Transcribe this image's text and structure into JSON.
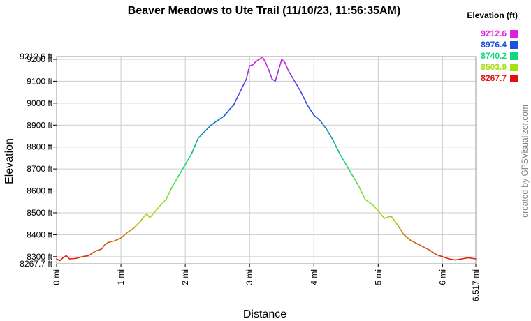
{
  "chart_data": {
    "type": "line",
    "title": "Beaver Meadows to Ute Trail (11/10/23, 11:56:35AM)",
    "xlabel": "Distance",
    "ylabel": "Elevation",
    "x_range": [
      0,
      6.517
    ],
    "y_range": [
      8267.7,
      9212.6
    ],
    "x_ticks": [
      {
        "value": 0,
        "label": "0 mi"
      },
      {
        "value": 1,
        "label": "1 mi"
      },
      {
        "value": 2,
        "label": "2 mi"
      },
      {
        "value": 3,
        "label": "3 mi"
      },
      {
        "value": 4,
        "label": "4 mi"
      },
      {
        "value": 5,
        "label": "5 mi"
      },
      {
        "value": 6,
        "label": "6 mi"
      },
      {
        "value": 6.517,
        "label": "6.517 mi"
      }
    ],
    "y_ticks": [
      {
        "value": 8300,
        "label": "8300 ft"
      },
      {
        "value": 8400,
        "label": "8400 ft"
      },
      {
        "value": 8500,
        "label": "8500 ft"
      },
      {
        "value": 8600,
        "label": "8600 ft"
      },
      {
        "value": 8700,
        "label": "8700 ft"
      },
      {
        "value": 8800,
        "label": "8800 ft"
      },
      {
        "value": 8900,
        "label": "8900 ft"
      },
      {
        "value": 9000,
        "label": "9000 ft"
      },
      {
        "value": 9100,
        "label": "9100 ft"
      },
      {
        "value": 9200,
        "label": "9200 ft"
      }
    ],
    "y_extreme_labels": [
      {
        "value": 9212.6,
        "label": "9212.6 ft"
      },
      {
        "value": 8267.7,
        "label": "8267.7 ft"
      }
    ],
    "grid": true,
    "legend_position": "top-right",
    "legend": {
      "title": "Elevation (ft)",
      "items": [
        {
          "label": "9212.6",
          "color": "#e020e0"
        },
        {
          "label": "8976.4",
          "color": "#1f4fe0"
        },
        {
          "label": "8740.2",
          "color": "#10d880"
        },
        {
          "label": "8503.9",
          "color": "#a8e010"
        },
        {
          "label": "8267.7",
          "color": "#e01010"
        }
      ]
    },
    "series": [
      {
        "x": [
          0,
          0.05,
          0.1,
          0.15,
          0.2,
          0.3,
          0.4,
          0.5,
          0.6,
          0.7,
          0.75,
          0.8,
          0.9,
          1.0,
          1.1,
          1.2,
          1.3,
          1.35,
          1.4,
          1.45,
          1.5,
          1.6,
          1.7,
          1.8,
          1.9,
          2.0,
          2.1,
          2.2,
          2.3,
          2.4,
          2.5,
          2.6,
          2.7,
          2.75,
          2.8,
          2.9,
          2.95,
          3.0,
          3.05,
          3.1,
          3.2,
          3.25,
          3.3,
          3.35,
          3.4,
          3.45,
          3.5,
          3.55,
          3.6,
          3.7,
          3.8,
          3.9,
          4.0,
          4.1,
          4.2,
          4.3,
          4.4,
          4.5,
          4.6,
          4.7,
          4.8,
          4.9,
          5.0,
          5.05,
          5.1,
          5.2,
          5.3,
          5.4,
          5.5,
          5.6,
          5.7,
          5.8,
          5.9,
          6.0,
          6.1,
          6.2,
          6.3,
          6.4,
          6.517
        ],
        "y": [
          8290,
          8282,
          8295,
          8305,
          8290,
          8292,
          8300,
          8305,
          8325,
          8335,
          8355,
          8365,
          8372,
          8385,
          8410,
          8430,
          8460,
          8480,
          8495,
          8478,
          8495,
          8530,
          8560,
          8620,
          8670,
          8720,
          8770,
          8840,
          8870,
          8900,
          8920,
          8940,
          8975,
          8990,
          9020,
          9080,
          9110,
          9170,
          9175,
          9190,
          9210,
          9185,
          9150,
          9110,
          9100,
          9150,
          9200,
          9185,
          9150,
          9100,
          9050,
          8990,
          8945,
          8920,
          8880,
          8830,
          8770,
          8720,
          8670,
          8620,
          8560,
          8540,
          8510,
          8490,
          8475,
          8485,
          8445,
          8400,
          8375,
          8360,
          8345,
          8330,
          8310,
          8300,
          8290,
          8285,
          8290,
          8295,
          8290
        ]
      }
    ]
  },
  "credit": "created by GPSVisualizer.com"
}
